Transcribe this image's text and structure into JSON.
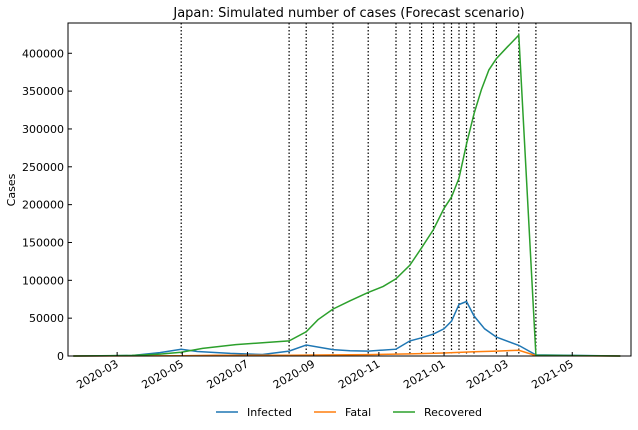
{
  "chart_data": {
    "type": "line",
    "title": "Japan: Simulated number of cases (Forecast scenario)",
    "xlabel": "",
    "ylabel": "Cases",
    "xlim": [
      "2020-01-15",
      "2021-06-25"
    ],
    "ylim": [
      0,
      440000
    ],
    "grid": false,
    "legend_position": "bottom-center",
    "x_ticks": [
      {
        "date": "2020-03-01",
        "label": "2020-03"
      },
      {
        "date": "2020-05-01",
        "label": "2020-05"
      },
      {
        "date": "2020-07-01",
        "label": "2020-07"
      },
      {
        "date": "2020-09-01",
        "label": "2020-09"
      },
      {
        "date": "2020-11-01",
        "label": "2020-11"
      },
      {
        "date": "2021-01-01",
        "label": "2021-01"
      },
      {
        "date": "2021-03-01",
        "label": "2021-03"
      },
      {
        "date": "2021-05-01",
        "label": "2021-05"
      }
    ],
    "y_ticks": [
      0,
      50000,
      100000,
      150000,
      200000,
      250000,
      300000,
      350000,
      400000
    ],
    "phase_change_dates": [
      "2020-04-30",
      "2020-08-09",
      "2020-08-25",
      "2020-09-19",
      "2020-10-22",
      "2020-11-17",
      "2020-11-30",
      "2020-12-11",
      "2020-12-22",
      "2021-01-01",
      "2021-01-08",
      "2021-01-15",
      "2021-01-22",
      "2021-01-29",
      "2021-02-19",
      "2021-03-12",
      "2021-03-28"
    ],
    "series": [
      {
        "name": "Infected",
        "color": "#1f77b4",
        "points": [
          [
            "2020-01-20",
            0
          ],
          [
            "2020-02-15",
            100
          ],
          [
            "2020-03-15",
            600
          ],
          [
            "2020-04-10",
            4500
          ],
          [
            "2020-04-30",
            9000
          ],
          [
            "2020-05-15",
            6000
          ],
          [
            "2020-06-15",
            3500
          ],
          [
            "2020-07-15",
            2000
          ],
          [
            "2020-08-09",
            6500
          ],
          [
            "2020-08-25",
            14500
          ],
          [
            "2020-09-19",
            8500
          ],
          [
            "2020-10-05",
            7000
          ],
          [
            "2020-10-22",
            6500
          ],
          [
            "2020-11-17",
            9000
          ],
          [
            "2020-11-30",
            20000
          ],
          [
            "2020-12-11",
            24000
          ],
          [
            "2020-12-22",
            29000
          ],
          [
            "2021-01-01",
            36000
          ],
          [
            "2021-01-08",
            46000
          ],
          [
            "2021-01-15",
            68000
          ],
          [
            "2021-01-22",
            72000
          ],
          [
            "2021-01-29",
            53000
          ],
          [
            "2021-02-08",
            36000
          ],
          [
            "2021-02-19",
            25000
          ],
          [
            "2021-03-12",
            14000
          ],
          [
            "2021-03-28",
            1500
          ],
          [
            "2021-06-15",
            0
          ]
        ]
      },
      {
        "name": "Fatal",
        "color": "#ff7f0e",
        "points": [
          [
            "2020-01-20",
            0
          ],
          [
            "2020-04-30",
            300
          ],
          [
            "2020-06-01",
            900
          ],
          [
            "2020-07-15",
            1000
          ],
          [
            "2020-08-09",
            1100
          ],
          [
            "2020-09-19",
            1500
          ],
          [
            "2020-10-22",
            1800
          ],
          [
            "2020-11-30",
            2800
          ],
          [
            "2021-01-01",
            4000
          ],
          [
            "2021-01-29",
            5500
          ],
          [
            "2021-02-19",
            6500
          ],
          [
            "2021-03-12",
            7500
          ],
          [
            "2021-03-28",
            500
          ],
          [
            "2021-06-15",
            0
          ]
        ]
      },
      {
        "name": "Recovered",
        "color": "#2ca02c",
        "points": [
          [
            "2020-01-20",
            0
          ],
          [
            "2020-02-15",
            200
          ],
          [
            "2020-03-15",
            800
          ],
          [
            "2020-04-10",
            2500
          ],
          [
            "2020-04-30",
            5000
          ],
          [
            "2020-05-20",
            10000
          ],
          [
            "2020-06-20",
            15000
          ],
          [
            "2020-07-20",
            18000
          ],
          [
            "2020-08-09",
            20000
          ],
          [
            "2020-08-25",
            32000
          ],
          [
            "2020-09-05",
            48000
          ],
          [
            "2020-09-19",
            62000
          ],
          [
            "2020-10-05",
            73000
          ],
          [
            "2020-10-22",
            84000
          ],
          [
            "2020-11-05",
            92000
          ],
          [
            "2020-11-17",
            102000
          ],
          [
            "2020-11-30",
            120000
          ],
          [
            "2020-12-11",
            143000
          ],
          [
            "2020-12-22",
            167000
          ],
          [
            "2021-01-01",
            195000
          ],
          [
            "2021-01-08",
            210000
          ],
          [
            "2021-01-15",
            235000
          ],
          [
            "2021-01-22",
            280000
          ],
          [
            "2021-01-29",
            320000
          ],
          [
            "2021-02-05",
            352000
          ],
          [
            "2021-02-12",
            378000
          ],
          [
            "2021-02-19",
            393000
          ],
          [
            "2021-03-01",
            408000
          ],
          [
            "2021-03-12",
            424000
          ],
          [
            "2021-03-28",
            1000
          ],
          [
            "2021-06-15",
            0
          ]
        ]
      }
    ]
  }
}
